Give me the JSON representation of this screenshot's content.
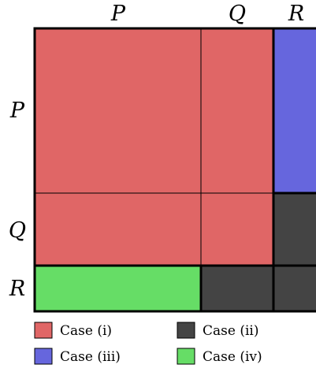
{
  "labels": {
    "top": [
      "P",
      "Q",
      "R"
    ],
    "left": [
      "P",
      "Q",
      "R"
    ]
  },
  "regions": [
    {
      "row": "P",
      "col": "P",
      "case": "i"
    },
    {
      "row": "P",
      "col": "Q",
      "case": "i"
    },
    {
      "row": "Q",
      "col": "P",
      "case": "i"
    },
    {
      "row": "Q",
      "col": "Q",
      "case": "i"
    },
    {
      "row": "P",
      "col": "R",
      "case": "iii"
    },
    {
      "row": "Q",
      "col": "R",
      "case": "ii"
    },
    {
      "row": "R",
      "col": "P",
      "case": "iv"
    },
    {
      "row": "R",
      "col": "Q",
      "case": "ii"
    },
    {
      "row": "R",
      "col": "R",
      "case": "ii"
    }
  ],
  "legend": [
    {
      "id": "i",
      "label": "Case (i)",
      "color": "#e06666"
    },
    {
      "id": "ii",
      "label": "Case (ii)",
      "color": "#444444"
    },
    {
      "id": "iii",
      "label": "Case (iii)",
      "color": "#6666dd"
    },
    {
      "id": "iv",
      "label": "Case (iv)",
      "color": "#66dd66"
    }
  ]
}
